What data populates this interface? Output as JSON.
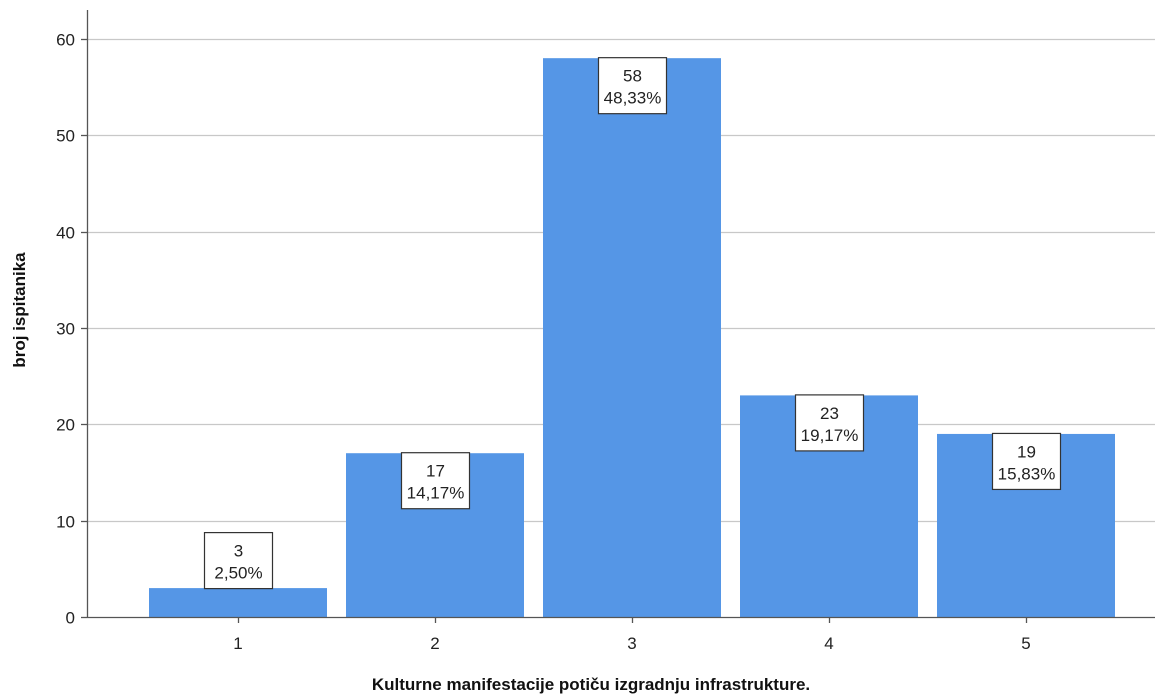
{
  "chart_data": {
    "type": "bar",
    "xlabel": "Kulturne manifestacije potiču izgradnju infrastrukture.",
    "ylabel": "broj ispitanika",
    "categories": [
      "1",
      "2",
      "3",
      "4",
      "5"
    ],
    "values": [
      3,
      17,
      58,
      23,
      19
    ],
    "percent_labels": [
      "2,50%",
      "14,17%",
      "48,33%",
      "19,17%",
      "15,83%"
    ],
    "ylim": [
      0,
      63
    ],
    "yticks": [
      0,
      10,
      20,
      30,
      40,
      50,
      60
    ],
    "grid": true,
    "bar_color": "#5596e6",
    "grid_color": "#c8c8c8",
    "axis_color": "#555555"
  }
}
